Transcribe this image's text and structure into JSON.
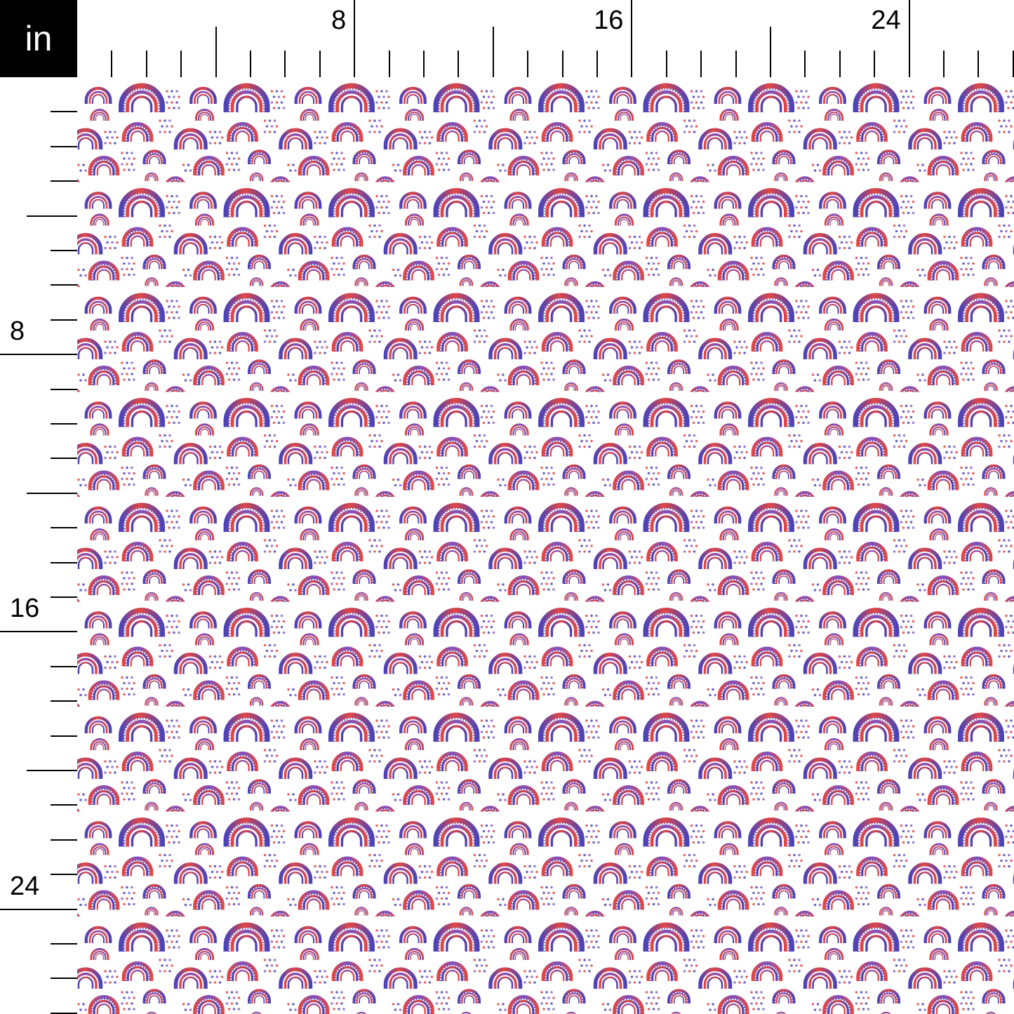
{
  "unit_label": "in",
  "top_ruler": {
    "labels": [
      "8",
      "16",
      "24"
    ],
    "inches_shown": 27
  },
  "left_ruler": {
    "labels": [
      "8",
      "16",
      "24"
    ],
    "inches_shown": 27
  },
  "fabric": {
    "motif": "watercolor rainbows and dots",
    "colors": {
      "red": "#e0322f",
      "blue": "#3a2fb0",
      "purple": "#7a4fc0",
      "background": "#ffffff"
    }
  }
}
